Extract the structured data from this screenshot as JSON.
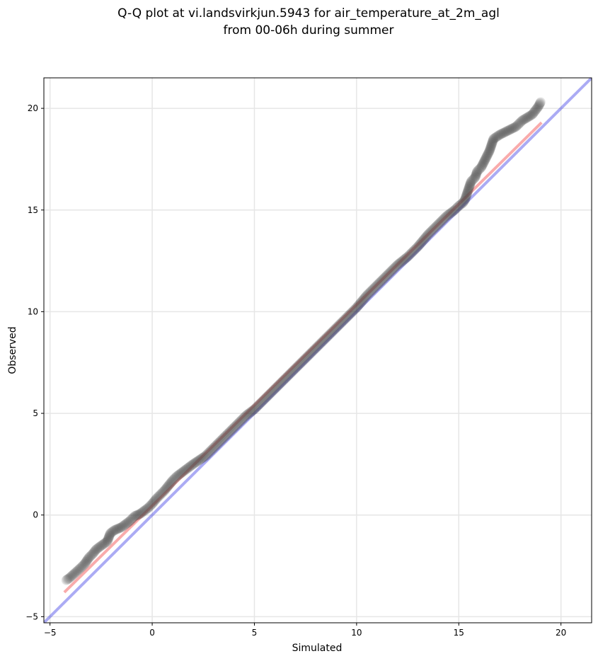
{
  "chart_data": {
    "type": "scatter",
    "title": "Q-Q plot at vi.landsvirkjun.5943 for air_temperature_at_2m_agl",
    "subtitle": "from 00-06h during summer",
    "xlabel": "Simulated",
    "ylabel": "Observed",
    "xlim": [
      -5.3,
      21.5
    ],
    "ylim": [
      -5.3,
      21.5
    ],
    "xticks": [
      -5,
      0,
      5,
      10,
      15,
      20
    ],
    "yticks": [
      -5,
      0,
      5,
      10,
      15,
      20
    ],
    "xtick_labels": [
      "−5",
      "0",
      "5",
      "10",
      "15",
      "20"
    ],
    "ytick_labels": [
      "−5",
      "0",
      "5",
      "10",
      "15",
      "20"
    ],
    "grid": true,
    "series": [
      {
        "x": [
          -4.2,
          -4.05,
          -3.5,
          -3.3,
          -3.1,
          -2.9,
          -2.75,
          -2.55,
          -2.2,
          -2.05,
          -1.85,
          -1.5,
          -1.3,
          -1.1,
          -0.85,
          -0.6,
          -0.4,
          -0.2,
          0.0,
          0.2,
          0.4,
          0.6,
          0.8,
          1.0,
          1.2,
          1.4,
          1.6,
          1.8,
          2.0,
          2.3,
          2.6,
          2.8,
          3.0,
          3.4,
          3.8,
          4.2,
          4.6,
          5.0,
          5.4,
          5.8,
          6.2,
          6.6,
          7.0,
          7.5,
          8.0,
          8.5,
          9.0,
          9.5,
          10.0,
          10.5,
          11.0,
          11.5,
          12.0,
          12.5,
          13.0,
          13.5,
          14.0,
          14.4,
          14.8,
          15.0,
          15.2,
          15.3,
          15.4,
          15.5,
          15.6,
          15.8,
          15.9,
          16.1,
          16.3,
          16.5,
          16.7,
          17.0,
          17.6,
          17.8,
          18.1,
          18.6,
          18.9,
          19.0
        ],
        "y": [
          -3.2,
          -3.1,
          -2.6,
          -2.4,
          -2.1,
          -1.9,
          -1.7,
          -1.55,
          -1.3,
          -0.9,
          -0.75,
          -0.6,
          -0.45,
          -0.3,
          -0.05,
          0.05,
          0.2,
          0.35,
          0.55,
          0.8,
          1.0,
          1.2,
          1.45,
          1.7,
          1.9,
          2.05,
          2.2,
          2.35,
          2.5,
          2.7,
          2.9,
          3.1,
          3.3,
          3.7,
          4.1,
          4.5,
          4.9,
          5.2,
          5.6,
          6.0,
          6.4,
          6.8,
          7.2,
          7.7,
          8.2,
          8.7,
          9.2,
          9.7,
          10.2,
          10.8,
          11.3,
          11.8,
          12.3,
          12.7,
          13.2,
          13.8,
          14.3,
          14.7,
          15.0,
          15.2,
          15.35,
          15.5,
          15.8,
          16.1,
          16.4,
          16.6,
          16.9,
          17.1,
          17.5,
          17.9,
          18.5,
          18.7,
          19.0,
          19.1,
          19.4,
          19.7,
          20.1,
          20.3
        ]
      }
    ],
    "reference_lines": [
      {
        "kind": "identity",
        "color": "#0000dd",
        "x": [
          -5.3,
          21.5
        ],
        "y": [
          -5.3,
          21.5
        ]
      },
      {
        "kind": "fit",
        "color": "#ee0000",
        "x": [
          -4.3,
          19.05
        ],
        "y": [
          -3.8,
          19.3
        ]
      }
    ]
  }
}
